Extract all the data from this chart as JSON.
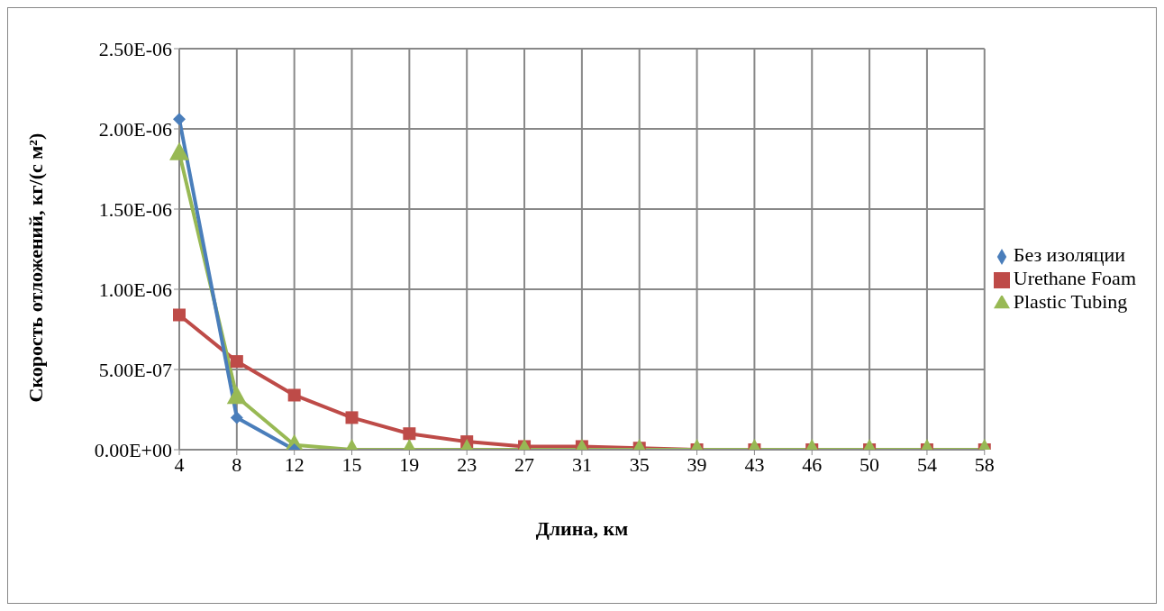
{
  "chart_data": {
    "type": "line",
    "xlabel": "Длина, км",
    "ylabel": "Скорость отложений, кг/(с м²)",
    "categories": [
      "4",
      "8",
      "12",
      "15",
      "19",
      "23",
      "27",
      "31",
      "35",
      "39",
      "43",
      "46",
      "50",
      "54",
      "58"
    ],
    "series": [
      {
        "name": "Без изоляции",
        "color": "#4a7ebb",
        "marker": "diamond",
        "values": [
          2.06e-06,
          2e-07,
          0,
          null,
          null,
          null,
          null,
          null,
          null,
          null,
          null,
          null,
          null,
          null,
          null
        ]
      },
      {
        "name": "Urethane Foam",
        "color": "#be4b48",
        "marker": "square",
        "values": [
          8.4e-07,
          5.5e-07,
          3.4e-07,
          2e-07,
          1e-07,
          5e-08,
          2e-08,
          2e-08,
          1e-08,
          0,
          0,
          0,
          0,
          0,
          0
        ]
      },
      {
        "name": "Plastic Tubing",
        "color": "#98b954",
        "marker": "triangle",
        "values": [
          1.85e-06,
          3.3e-07,
          3e-08,
          0,
          0,
          0,
          0,
          0,
          0,
          0,
          0,
          0,
          0,
          0,
          0
        ]
      }
    ],
    "ylim": [
      0,
      2.5e-06
    ],
    "yticks": [
      {
        "value": 0,
        "label": "0.00E+00"
      },
      {
        "value": 5e-07,
        "label": "5.00E-07"
      },
      {
        "value": 1e-06,
        "label": "1.00E-06"
      },
      {
        "value": 1.5e-06,
        "label": "1.50E-06"
      },
      {
        "value": 2e-06,
        "label": "2.00E-06"
      },
      {
        "value": 2.5e-06,
        "label": "2.50E-06"
      }
    ],
    "grid": true,
    "legend": "right"
  }
}
